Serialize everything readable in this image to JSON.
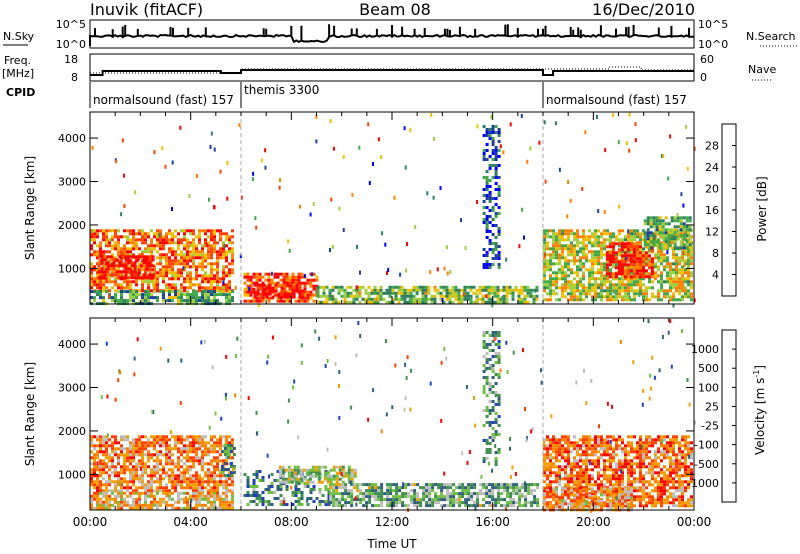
{
  "header": {
    "station": "Inuvik (fitACF)",
    "beam": "Beam 08",
    "date": "16/Dec/2010"
  },
  "summary_panels": {
    "nsky_label": "N.Sky",
    "nsky_ticks": [
      "10^5",
      "10^0"
    ],
    "nsearch_label": "N.Search",
    "nsearch_ticks": [
      "10^5",
      "10^0"
    ],
    "freq_label": "Freq.",
    "freq_unit": "[MHz]",
    "freq_ticks": [
      "18",
      "8"
    ],
    "nave_label": "Nave",
    "nave_ticks": [
      "60",
      "0"
    ],
    "cpid_label": "CPID",
    "cpid_segments": [
      {
        "label": "normalsound (fast) 157",
        "start_hour": 0,
        "end_hour": 6.0
      },
      {
        "label": "themis 3300",
        "start_hour": 6.0,
        "end_hour": 18.0
      },
      {
        "label": "normalsound (fast) 157",
        "start_hour": 18.0,
        "end_hour": 24
      }
    ]
  },
  "colors": {
    "power_scale": [
      "#0000ff",
      "#1f3f9f",
      "#2f7f5f",
      "#3fa84a",
      "#9fcf3f",
      "#f0c000",
      "#ff8000",
      "#ff4000",
      "#ff0000"
    ],
    "velocity_scale": [
      "#1f3fbf",
      "#2f5f7f",
      "#3f8f4f",
      "#6fc040",
      "#bcbcbc",
      "#f0a000",
      "#ff7f00",
      "#ff3f00",
      "#ff0000"
    ]
  },
  "chart_data": [
    {
      "type": "heatmap",
      "name": "power",
      "ylabel": "Slant Range [km]",
      "yticks": [
        "4000",
        "3000",
        "2000",
        "1000"
      ],
      "ylim": [
        180,
        4600
      ],
      "xlim_hours": [
        0,
        24
      ],
      "colorbar_label": "Power [dB]",
      "colorbar_ticks": [
        "28",
        "24",
        "20",
        "16",
        "12",
        "8",
        "4"
      ],
      "colorbar_range": [
        0,
        32
      ],
      "regions": [
        {
          "t0": 0.0,
          "t1": 5.7,
          "r0": 500,
          "r1": 1900,
          "level": 0.75
        },
        {
          "t0": 0.3,
          "t1": 2.5,
          "r0": 800,
          "r1": 1300,
          "level": 0.95
        },
        {
          "t0": 0.0,
          "t1": 5.7,
          "r0": 200,
          "r1": 500,
          "level": 0.35
        },
        {
          "t0": 6.1,
          "t1": 9.0,
          "r0": 250,
          "r1": 900,
          "level": 0.85
        },
        {
          "t0": 6.5,
          "t1": 8.5,
          "r0": 350,
          "r1": 650,
          "level": 0.95
        },
        {
          "t0": 9.0,
          "t1": 17.8,
          "r0": 230,
          "r1": 600,
          "level": 0.45
        },
        {
          "t0": 18.0,
          "t1": 23.9,
          "r0": 300,
          "r1": 1900,
          "level": 0.55
        },
        {
          "t0": 20.5,
          "t1": 22.3,
          "r0": 800,
          "r1": 1600,
          "level": 0.92
        },
        {
          "t0": 15.6,
          "t1": 16.2,
          "r0": 1000,
          "r1": 4300,
          "level": 0.2
        },
        {
          "t0": 22.0,
          "t1": 23.9,
          "r0": 1500,
          "r1": 2200,
          "level": 0.4
        }
      ]
    },
    {
      "type": "heatmap",
      "name": "velocity",
      "ylabel": "Slant Range [km]",
      "yticks": [
        "4000",
        "3000",
        "2000",
        "1000"
      ],
      "ylim": [
        180,
        4600
      ],
      "xlim_hours": [
        0,
        24
      ],
      "xticks": [
        "00:00",
        "04:00",
        "08:00",
        "12:00",
        "16:00",
        "20:00",
        "00:00"
      ],
      "xlabel": "Time UT",
      "colorbar_label": "Velocity [m s",
      "colorbar_label_sup": "-1",
      "colorbar_label_end": "]",
      "colorbar_ticks": [
        "1000",
        "500",
        "100",
        "25",
        "-25",
        "-100",
        "-500",
        "-1000"
      ],
      "regions": [
        {
          "t0": 0.0,
          "t1": 5.7,
          "r0": 600,
          "r1": 1900,
          "level": 0.7
        },
        {
          "t0": 0.0,
          "t1": 5.7,
          "r0": 200,
          "r1": 600,
          "level": 0.6
        },
        {
          "t0": 5.2,
          "t1": 5.7,
          "r0": 1000,
          "r1": 1700,
          "level": 0.25
        },
        {
          "t0": 6.1,
          "t1": 9.5,
          "r0": 300,
          "r1": 1100,
          "level": 0.25
        },
        {
          "t0": 7.5,
          "t1": 10.5,
          "r0": 800,
          "r1": 1200,
          "level": 0.45
        },
        {
          "t0": 9.5,
          "t1": 17.8,
          "r0": 250,
          "r1": 800,
          "level": 0.35
        },
        {
          "t0": 18.0,
          "t1": 23.9,
          "r0": 300,
          "r1": 1900,
          "level": 0.75
        },
        {
          "t0": 18.0,
          "t1": 21.5,
          "r0": 200,
          "r1": 700,
          "level": 0.65
        },
        {
          "t0": 15.6,
          "t1": 16.2,
          "r0": 1200,
          "r1": 4300,
          "level": 0.3
        }
      ]
    }
  ]
}
